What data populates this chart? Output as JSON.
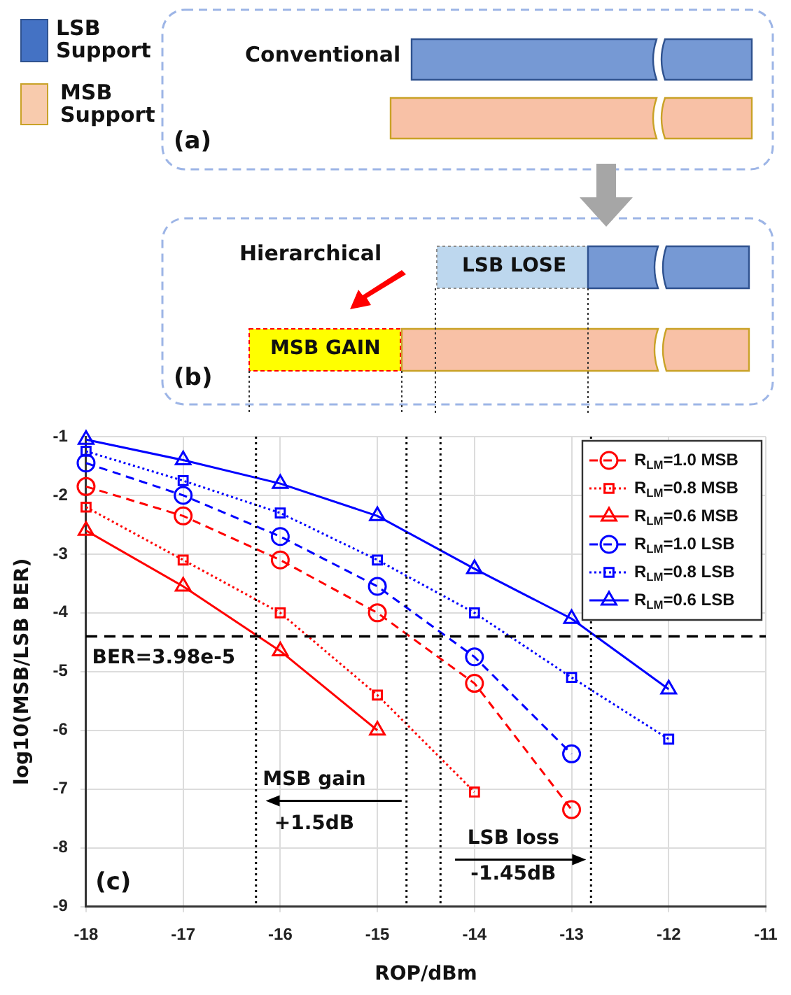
{
  "chart_data": [
    {
      "type": "other",
      "annotations": [
        "LSB Support",
        "MSB Support",
        "Conventional",
        "(a)",
        "Hierarchical",
        "LSB LOSE",
        "MSB GAIN",
        "(b)"
      ]
    },
    {
      "type": "line",
      "xlabel": "ROP/dBm",
      "ylabel": "log10(MSB/LSB BER)",
      "xlim": [
        -18,
        -11
      ],
      "xticks": [
        -18,
        -17,
        -16,
        -15,
        -14,
        -13,
        -12,
        -11
      ],
      "ylim": [
        -9,
        -1
      ],
      "yticks": [
        -9,
        -8,
        -7,
        -6,
        -5,
        -4,
        -3,
        -2,
        -1
      ],
      "grid": true,
      "legend": "top right",
      "series": [
        {
          "name": "R$_{LM}$=1.0 MSB",
          "color": "#ff0000",
          "marker": "circle",
          "line_style": "dashed",
          "x": [
            -18,
            -17,
            -16,
            -15,
            -14,
            -13
          ],
          "values": [
            -1.85,
            -2.35,
            -3.1,
            -4.0,
            -5.2,
            -7.35
          ]
        },
        {
          "name": "R$_{LM}$=0.8 MSB",
          "color": "#ff0000",
          "marker": "square",
          "line_style": "dotted",
          "x": [
            -18,
            -17,
            -16,
            -15,
            -14
          ],
          "values": [
            -2.2,
            -3.1,
            -4.0,
            -5.4,
            -7.05
          ]
        },
        {
          "name": "R$_{LM}$=0.6 MSB",
          "color": "#ff0000",
          "marker": "triangle",
          "line_style": "solid",
          "x": [
            -18,
            -17,
            -16,
            -15
          ],
          "values": [
            -2.6,
            -3.55,
            -4.65,
            -6.0
          ]
        },
        {
          "name": "R$_{LM}$=1.0 LSB",
          "color": "#0000ff",
          "marker": "circle",
          "line_style": "dashed",
          "x": [
            -18,
            -17,
            -16,
            -15,
            -14,
            -13
          ],
          "values": [
            -1.45,
            -2.0,
            -2.7,
            -3.55,
            -4.75,
            -6.4
          ]
        },
        {
          "name": "R$_{LM}$=0.8 LSB",
          "color": "#0000ff",
          "marker": "square",
          "line_style": "dotted",
          "x": [
            -18,
            -17,
            -16,
            -15,
            -14,
            -13,
            -12
          ],
          "values": [
            -1.25,
            -1.75,
            -2.3,
            -3.1,
            -4.0,
            -5.1,
            -6.15
          ]
        },
        {
          "name": "R$_{LM}$=0.6 LSB",
          "color": "#0000ff",
          "marker": "triangle",
          "line_style": "solid",
          "x": [
            -18,
            -17,
            -16,
            -15,
            -14,
            -13,
            -12
          ],
          "values": [
            -1.05,
            -1.4,
            -1.8,
            -2.35,
            -3.25,
            -4.1,
            -5.3
          ]
        }
      ],
      "ref_lines": [
        {
          "axis": "y",
          "value": -4.4,
          "color": "#000000",
          "line_style": "dashed"
        },
        {
          "axis": "x",
          "value": -16.25,
          "color": "#000000",
          "line_style": "dotted"
        },
        {
          "axis": "x",
          "value": -14.7,
          "color": "#000000",
          "line_style": "dotted"
        },
        {
          "axis": "x",
          "value": -14.35,
          "color": "#000000",
          "line_style": "dotted"
        },
        {
          "axis": "x",
          "value": -12.8,
          "color": "#000000",
          "line_style": "dotted"
        }
      ],
      "annotations": [
        {
          "text": "MSB gain",
          "x": -16.25,
          "y": -7.2
        },
        "+1.5dB",
        {
          "text": "LSB loss",
          "x": -12.8,
          "y": -8.2
        },
        "-1.45dB",
        "(c)",
        "BER=3.98e-5"
      ]
    }
  ]
}
